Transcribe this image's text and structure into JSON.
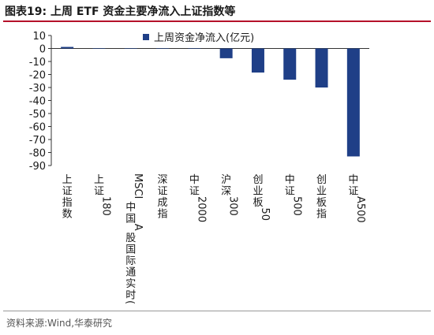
{
  "header": {
    "title": "图表19:  上周 ETF 资金主要净流入上证指数等"
  },
  "footer": {
    "source": "资料来源:Wind,华泰研究"
  },
  "chart_data": {
    "type": "bar",
    "title": "",
    "xlabel": "",
    "ylabel": "",
    "ylim": [
      -90,
      10
    ],
    "yticks": [
      10,
      0,
      -10,
      -20,
      -30,
      -40,
      -50,
      -60,
      -70,
      -80,
      -90
    ],
    "legend": {
      "position": "top-right"
    },
    "categories": [
      "上证指数",
      "上证180",
      "MSCI中国A股国际通实时(人民币)",
      "深证成指",
      "中证2000",
      "沪深300",
      "创业板50",
      "中证500",
      "创业板指",
      "中证A500"
    ],
    "series": [
      {
        "name": "上周资金净流入(亿元)",
        "color": "#1f3f87",
        "values": [
          1.2,
          0.2,
          0.1,
          0.2,
          0.2,
          -7.5,
          -18.5,
          -24,
          -30,
          -83
        ]
      }
    ]
  }
}
